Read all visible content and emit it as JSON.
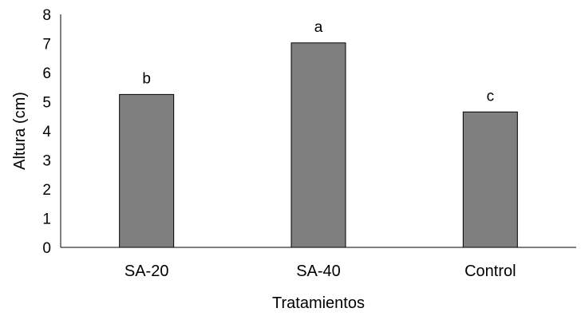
{
  "chart_data": {
    "type": "bar",
    "title": "",
    "xlabel": "Tratamientos",
    "ylabel": "Altura (cm)",
    "categories": [
      "SA-20",
      "SA-40",
      "Control"
    ],
    "values": [
      5.25,
      7.02,
      4.65
    ],
    "data_labels": [
      "b",
      "a",
      "c"
    ],
    "ylim": [
      0,
      8
    ],
    "yticks": [
      "0",
      "1",
      "2",
      "3",
      "4",
      "5",
      "6",
      "7",
      "8"
    ],
    "grid": false,
    "legend": "none",
    "bar_color": "#7f7f7f",
    "bar_edge_color": "#000000"
  }
}
